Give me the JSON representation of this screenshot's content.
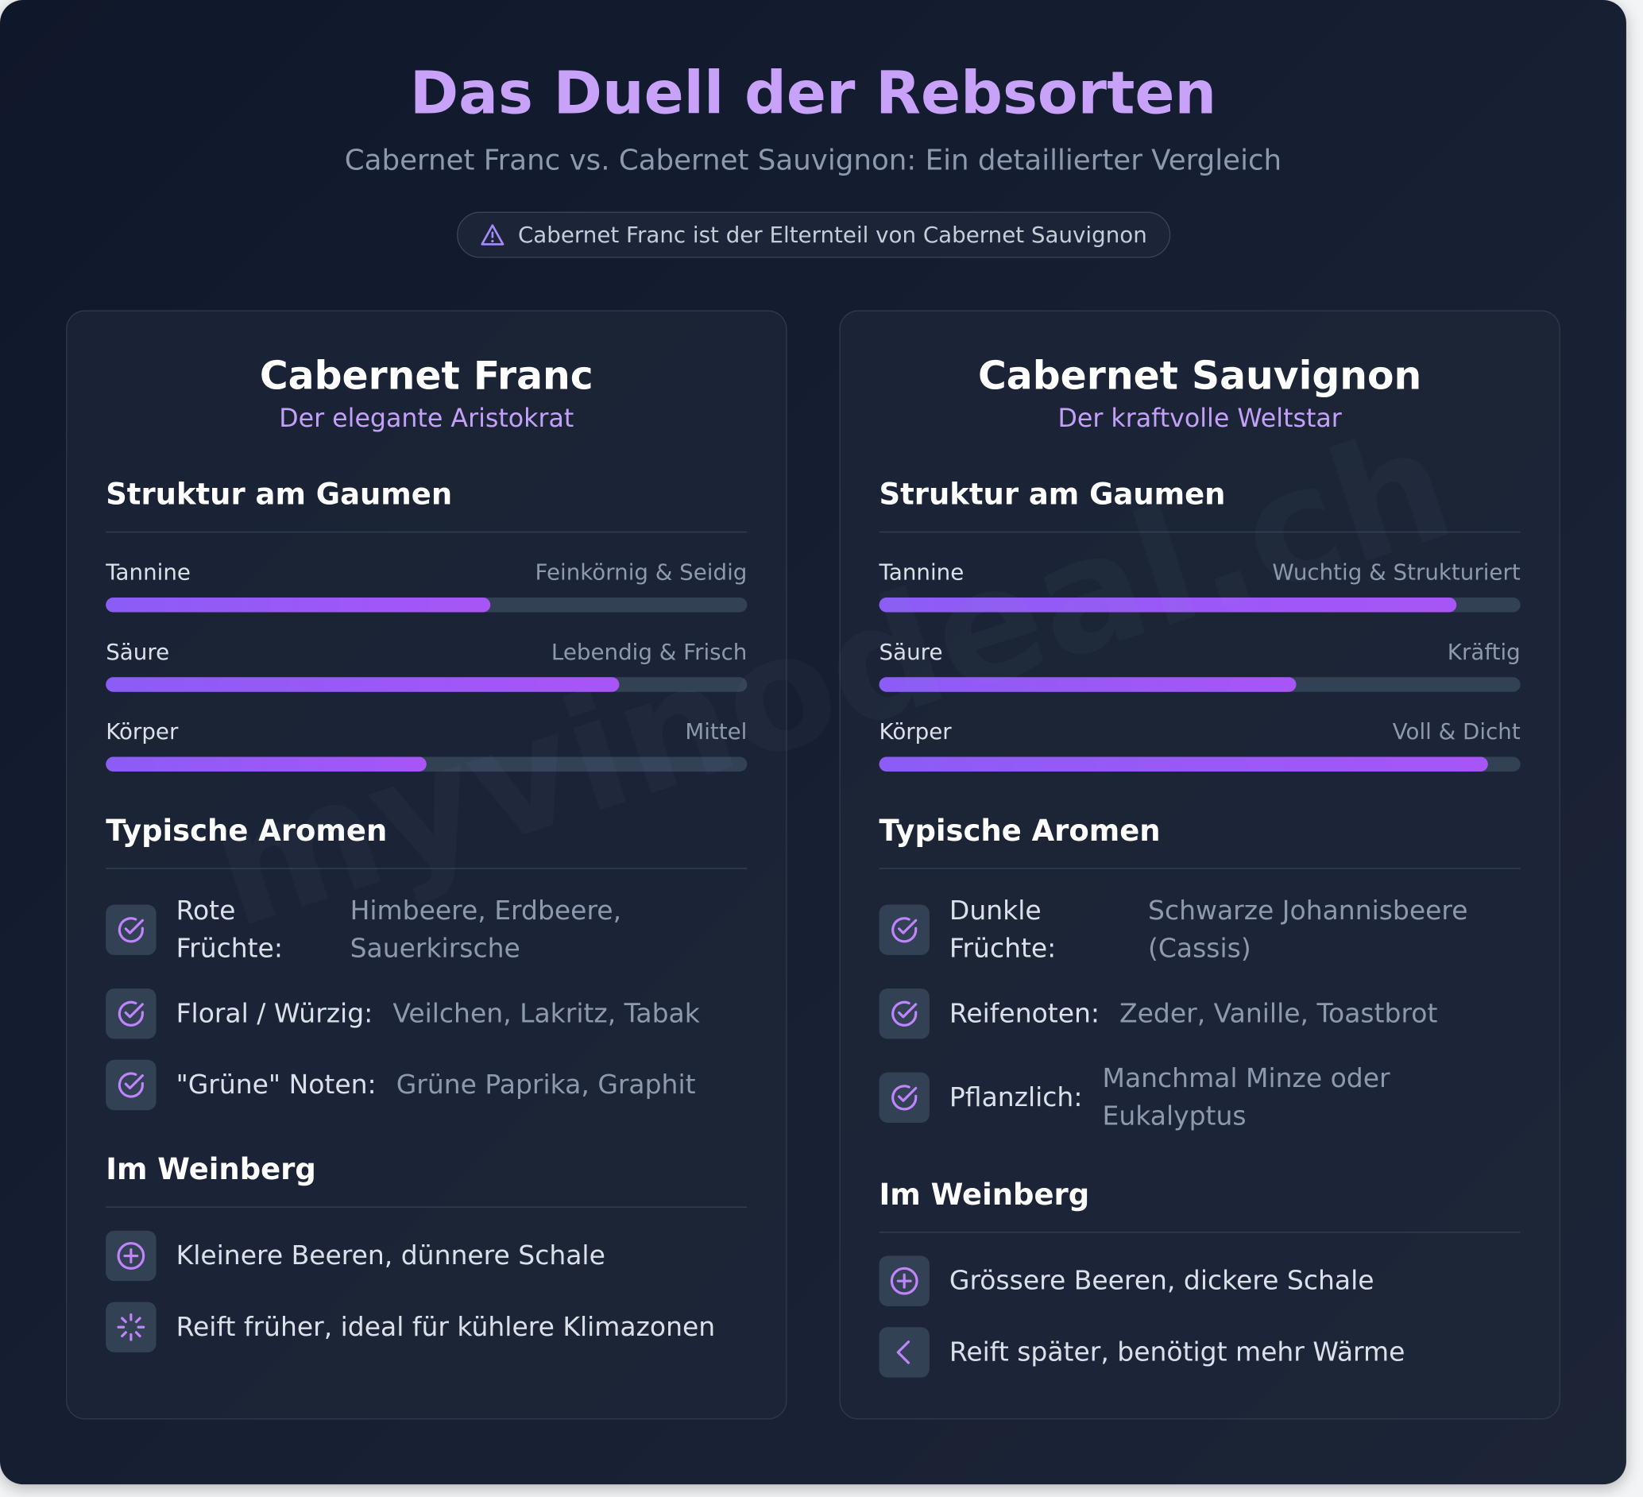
{
  "header": {
    "title": "Das Duell der Rebsorten",
    "subtitle": "Cabernet Franc vs. Cabernet Sauvignon: Ein detaillierter Vergleich",
    "note": "Cabernet Franc ist der Elternteil von Cabernet Sauvignon"
  },
  "watermark": "myvinodeal.ch",
  "columns": [
    {
      "name": "Cabernet Franc",
      "tagline": "Der elegante Aristokrat",
      "structure": {
        "heading": "Struktur am Gaumen",
        "items": [
          {
            "label": "Tannine",
            "description": "Feinkörnig & Seidig",
            "level": 60
          },
          {
            "label": "Säure",
            "description": "Lebendig & Frisch",
            "level": 80
          },
          {
            "label": "Körper",
            "description": "Mittel",
            "level": 50
          }
        ]
      },
      "aromas": {
        "heading": "Typische Aromen",
        "items": [
          {
            "label": "Rote Früchte:",
            "text": "Himbeere, Erdbeere, Sauerkirsche"
          },
          {
            "label": "Floral / Würzig:",
            "text": "Veilchen, Lakritz, Tabak"
          },
          {
            "label": "\"Grüne\" Noten:",
            "text": "Grüne Paprika, Graphit"
          }
        ]
      },
      "vineyard": {
        "heading": "Im Weinberg",
        "items": [
          "Kleinere Beeren, dünnere Schale",
          "Reift früher, ideal für kühlere Klimazonen"
        ]
      }
    },
    {
      "name": "Cabernet Sauvignon",
      "tagline": "Der kraftvolle Weltstar",
      "structure": {
        "heading": "Struktur am Gaumen",
        "items": [
          {
            "label": "Tannine",
            "description": "Wuchtig & Strukturiert",
            "level": 90
          },
          {
            "label": "Säure",
            "description": "Kräftig",
            "level": 65
          },
          {
            "label": "Körper",
            "description": "Voll & Dicht",
            "level": 95
          }
        ]
      },
      "aromas": {
        "heading": "Typische Aromen",
        "items": [
          {
            "label": "Dunkle Früchte:",
            "text": "Schwarze Johannisbeere (Cassis)"
          },
          {
            "label": "Reifenoten:",
            "text": "Zeder, Vanille, Toastbrot"
          },
          {
            "label": "Pflanzlich:",
            "text": "Manchmal Minze oder Eukalyptus"
          }
        ]
      },
      "vineyard": {
        "heading": "Im Weinberg",
        "items": [
          "Grössere Beeren, dickere Schale",
          "Reift später, benötigt mehr Wärme"
        ]
      }
    }
  ]
}
